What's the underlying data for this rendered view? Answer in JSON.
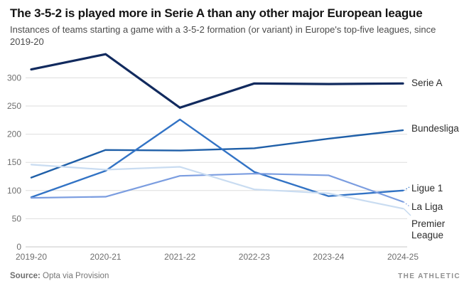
{
  "chart_data": {
    "type": "line",
    "title": "The 3-5-2 is played more in Serie A than any other major European league",
    "subtitle": "Instances of teams starting a game with a 3-5-2 formation (or variant) in Europe's top-five leagues, since 2019-20",
    "xlabel": "",
    "ylabel": "",
    "categories": [
      "2019-20",
      "2020-21",
      "2021-22",
      "2022-23",
      "2023-24",
      "2024-25"
    ],
    "yticks": [
      0,
      50,
      100,
      150,
      200,
      250,
      300
    ],
    "ylim": [
      0,
      350
    ],
    "grid": true,
    "legend_position": "right-edge-labels",
    "series": [
      {
        "name": "Serie A",
        "color": "#112a5e",
        "label_lines": [
          "Serie A"
        ],
        "values": [
          315,
          342,
          247,
          290,
          289,
          290
        ]
      },
      {
        "name": "Bundesliga",
        "color": "#1f5fa8",
        "label_lines": [
          "Bundesliga"
        ],
        "values": [
          123,
          172,
          171,
          175,
          192,
          207
        ]
      },
      {
        "name": "Ligue 1",
        "color": "#3273c5",
        "label_lines": [
          "Ligue 1"
        ],
        "values": [
          88,
          135,
          226,
          133,
          90,
          100
        ]
      },
      {
        "name": "La Liga",
        "color": "#7b9de0",
        "label_lines": [
          "La Liga"
        ],
        "values": [
          87,
          89,
          126,
          130,
          127,
          80
        ]
      },
      {
        "name": "Premier League",
        "color": "#c9dcf1",
        "label_lines": [
          "Premier",
          "League"
        ],
        "values": [
          146,
          137,
          142,
          102,
          95,
          68
        ]
      }
    ]
  },
  "footer": {
    "source_label": "Source:",
    "source_text": " Opta via Provision",
    "brand": "THE ATHLETIC"
  }
}
